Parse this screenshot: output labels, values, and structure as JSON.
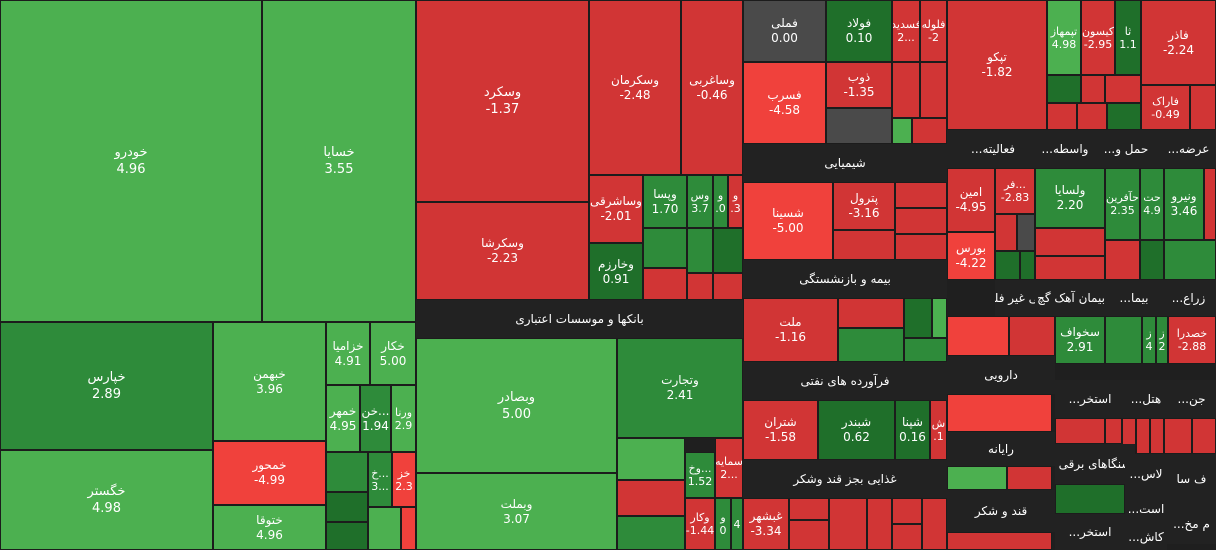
{
  "chart_data": {
    "type": "treemap",
    "colors": {
      "strong_green": "#2e8b3a",
      "green": "#3fa94a",
      "light_green": "#4cb050",
      "dark_green": "#1f6f2a",
      "red": "#d13535",
      "light_red": "#f0413c",
      "dark_red": "#b52a2a",
      "neutral": "#4a4a4a",
      "header_bg": "#222222"
    },
    "sectors": [
      "بانکها و موسسات اعتباری",
      "شیمیایی",
      "بیمه و بازنشستگی",
      "فرآورده های نفتی",
      "غذایی بجز قند وشکر",
      "فعالیته...",
      "واسطه...",
      "حمل و...",
      "عرضه...",
      "زراع...",
      "بیمان آهک گچ",
      "کانی غیر فلزی",
      "بیما...",
      "دارویی",
      "رایانه",
      "قند و شکر",
      "استخر...",
      "هتل...",
      "جن...",
      "سنگاهای برقی",
      "لاس...",
      "است...",
      "م مخ...",
      "کاش...",
      "استخر...",
      "ف سا"
    ],
    "tiles": [
      {
        "name": "خودرو",
        "value": "4.96"
      },
      {
        "name": "خسایا",
        "value": "3.55"
      },
      {
        "name": "خپارس",
        "value": "2.89"
      },
      {
        "name": "خگستر",
        "value": "4.98"
      },
      {
        "name": "خبهمن",
        "value": "3.96"
      },
      {
        "name": "خمحور",
        "value": "-4.99"
      },
      {
        "name": "ختوقا",
        "value": "4.96"
      },
      {
        "name": "خزامیا",
        "value": "4.91"
      },
      {
        "name": "خکار",
        "value": "5.00"
      },
      {
        "name": "خمهر",
        "value": "4.95"
      },
      {
        "name": "خن...",
        "value": "1.94"
      },
      {
        "name": "ورنا",
        "value": "2.9"
      },
      {
        "name": "خ...",
        "value": "3..."
      },
      {
        "name": "خز",
        "value": "2.3"
      },
      {
        "name": "وسکرد",
        "value": "-1.37"
      },
      {
        "name": "وسکرشا",
        "value": "-2.23"
      },
      {
        "name": "وسکرمان",
        "value": "-2.48"
      },
      {
        "name": "وساغربی",
        "value": "-0.46"
      },
      {
        "name": "وساشرقی",
        "value": "-2.01"
      },
      {
        "name": "وپسا",
        "value": "1.70"
      },
      {
        "name": "وس",
        "value": "3.7"
      },
      {
        "name": "و",
        "value": ".0"
      },
      {
        "name": "و",
        "value": ".3"
      },
      {
        "name": "وخارزم",
        "value": "0.91"
      },
      {
        "name": "وبصادر",
        "value": "5.00"
      },
      {
        "name": "وتجارت",
        "value": "2.41"
      },
      {
        "name": "وبملت",
        "value": "3.07"
      },
      {
        "name": "وخ...",
        "value": "1.52"
      },
      {
        "name": "سمایه",
        "value": "2..."
      },
      {
        "name": "وکار",
        "value": "-1.44"
      },
      {
        "name": "و",
        "value": "0"
      },
      {
        "name": "",
        "value": "4"
      },
      {
        "name": "فملی",
        "value": "0.00"
      },
      {
        "name": "فولاد",
        "value": "0.10"
      },
      {
        "name": "فسدید",
        "value": "2..."
      },
      {
        "name": "فلوله",
        "value": "-2"
      },
      {
        "name": "ذوب",
        "value": "-1.35"
      },
      {
        "name": "فسرب",
        "value": "-4.58"
      },
      {
        "name": "شسینا",
        "value": "-5.00"
      },
      {
        "name": "پترول",
        "value": "-3.16"
      },
      {
        "name": "ملت",
        "value": "-1.16"
      },
      {
        "name": "شتران",
        "value": "-1.58"
      },
      {
        "name": "شبندر",
        "value": "0.62"
      },
      {
        "name": "شپنا",
        "value": "0.16"
      },
      {
        "name": "ش",
        "value": ".1"
      },
      {
        "name": "غبشهر",
        "value": "-3.34"
      },
      {
        "name": "تپکو",
        "value": "-1.82"
      },
      {
        "name": "کیسون",
        "value": "-2.95"
      },
      {
        "name": "تپمهاز",
        "value": "4.98"
      },
      {
        "name": "ثا",
        "value": "1.1"
      },
      {
        "name": "فاذر",
        "value": "-2.24"
      },
      {
        "name": "فاراک",
        "value": "-0.49"
      },
      {
        "name": "امین",
        "value": "-4.95"
      },
      {
        "name": "فر...",
        "value": "-2.83"
      },
      {
        "name": "بورس",
        "value": "-4.22"
      },
      {
        "name": "ولسایا",
        "value": "2.20"
      },
      {
        "name": "حآفرین",
        "value": "2.35"
      },
      {
        "name": "حت",
        "value": "4.9"
      },
      {
        "name": "ونیرو",
        "value": "3.46"
      },
      {
        "name": "سخواف",
        "value": "2.91"
      },
      {
        "name": "ز",
        "value": "4"
      },
      {
        "name": "ز",
        "value": "2"
      },
      {
        "name": "خصدرا",
        "value": "-2.88"
      }
    ]
  }
}
